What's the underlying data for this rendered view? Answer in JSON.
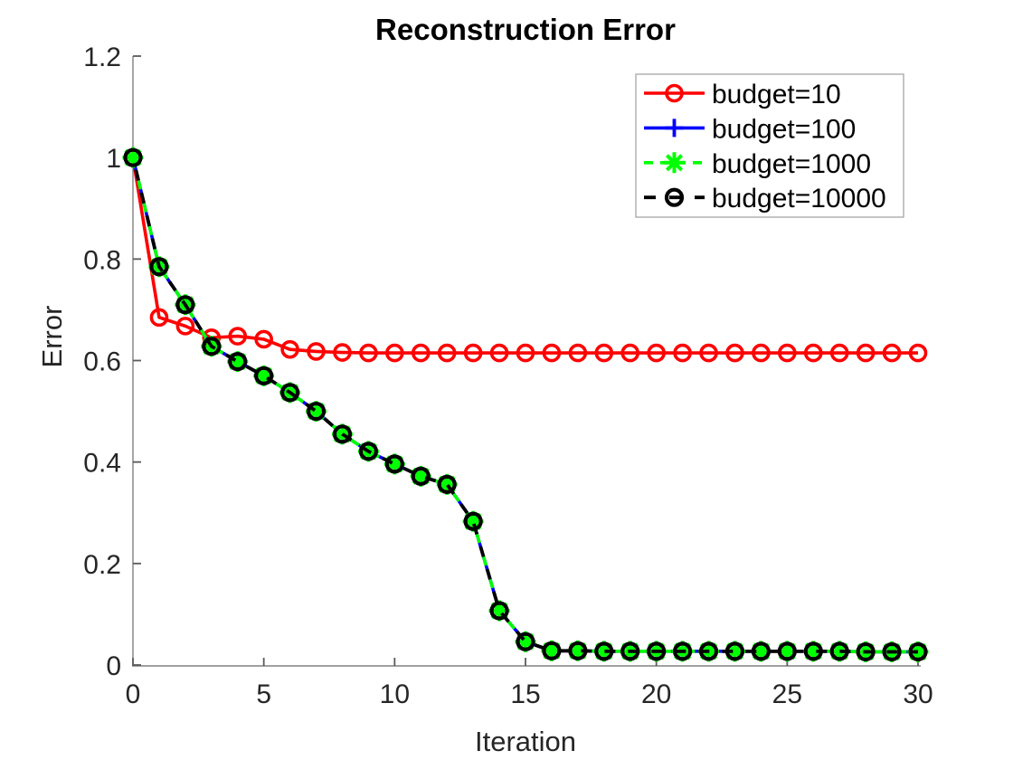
{
  "chart_data": {
    "type": "line",
    "title": "Reconstruction Error",
    "xlabel": "Iteration",
    "ylabel": "Error",
    "xlim": [
      0,
      30
    ],
    "ylim": [
      0,
      1.2
    ],
    "grid": false,
    "xticks": {
      "values": [
        0,
        5,
        10,
        15,
        20,
        25,
        30
      ],
      "labels": [
        "0",
        "5",
        "10",
        "15",
        "20",
        "25",
        "30"
      ]
    },
    "yticks": {
      "values": [
        0,
        0.2,
        0.4,
        0.6,
        0.8,
        1,
        1.2
      ],
      "labels": [
        "0",
        "0.2",
        "0.4",
        "0.6",
        "0.8",
        "1",
        "1.2"
      ]
    },
    "legend": {
      "position": "top-right",
      "bordered": true
    },
    "x": [
      0,
      1,
      2,
      3,
      4,
      5,
      6,
      7,
      8,
      9,
      10,
      11,
      12,
      13,
      14,
      15,
      16,
      17,
      18,
      19,
      20,
      21,
      22,
      23,
      24,
      25,
      26,
      27,
      28,
      29,
      30
    ],
    "series": [
      {
        "name": "budget=10",
        "color": "#ff0000",
        "linestyle": "solid",
        "marker": "circle-open",
        "values": [
          1.0,
          0.685,
          0.668,
          0.645,
          0.648,
          0.642,
          0.622,
          0.618,
          0.616,
          0.615,
          0.615,
          0.615,
          0.615,
          0.615,
          0.615,
          0.615,
          0.615,
          0.615,
          0.615,
          0.615,
          0.615,
          0.615,
          0.615,
          0.615,
          0.615,
          0.615,
          0.615,
          0.615,
          0.615,
          0.615,
          0.615
        ]
      },
      {
        "name": "budget=100",
        "color": "#0000ff",
        "linestyle": "solid",
        "marker": "plus",
        "values": [
          1.0,
          0.785,
          0.71,
          0.628,
          0.598,
          0.57,
          0.537,
          0.5,
          0.455,
          0.421,
          0.396,
          0.372,
          0.356,
          0.283,
          0.107,
          0.046,
          0.028,
          0.028,
          0.027,
          0.027,
          0.027,
          0.027,
          0.027,
          0.027,
          0.027,
          0.027,
          0.027,
          0.027,
          0.026,
          0.026,
          0.026
        ]
      },
      {
        "name": "budget=1000",
        "color": "#00ff00",
        "linestyle": "dashed",
        "marker": "asterisk",
        "values": [
          1.0,
          0.785,
          0.71,
          0.628,
          0.598,
          0.57,
          0.537,
          0.5,
          0.455,
          0.421,
          0.396,
          0.372,
          0.356,
          0.283,
          0.107,
          0.046,
          0.028,
          0.028,
          0.027,
          0.027,
          0.027,
          0.027,
          0.027,
          0.027,
          0.027,
          0.027,
          0.027,
          0.027,
          0.026,
          0.026,
          0.026
        ]
      },
      {
        "name": "budget=10000",
        "color": "#000000",
        "linestyle": "dashed",
        "marker": "circle-open",
        "values": [
          1.0,
          0.785,
          0.71,
          0.628,
          0.598,
          0.57,
          0.537,
          0.5,
          0.455,
          0.421,
          0.396,
          0.372,
          0.356,
          0.283,
          0.107,
          0.046,
          0.028,
          0.028,
          0.027,
          0.027,
          0.027,
          0.027,
          0.027,
          0.027,
          0.027,
          0.027,
          0.027,
          0.027,
          0.026,
          0.026,
          0.026
        ]
      }
    ],
    "colors": {
      "background": "#ffffff",
      "axis_spine": "#808080",
      "tick_mark": "#5a5a5a",
      "tick_label": "#262626",
      "title": "#000000",
      "legend_border": "#a6a6a6",
      "legend_text": "#000000"
    }
  }
}
